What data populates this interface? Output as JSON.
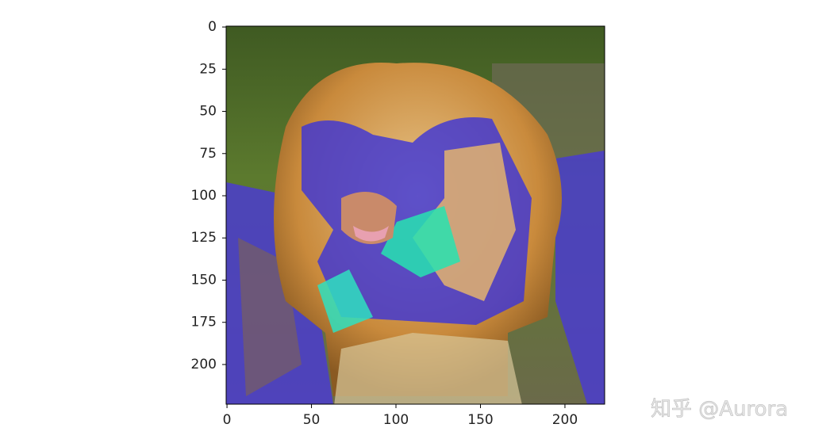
{
  "chart_data": {
    "type": "image",
    "xlim": [
      -0.5,
      223.5
    ],
    "ylim": [
      223.5,
      -0.5
    ],
    "xticks": [
      0,
      50,
      100,
      150,
      200
    ],
    "yticks": [
      0,
      25,
      50,
      75,
      100,
      125,
      150,
      175,
      200
    ]
  },
  "watermark": "知乎 @Aurora"
}
